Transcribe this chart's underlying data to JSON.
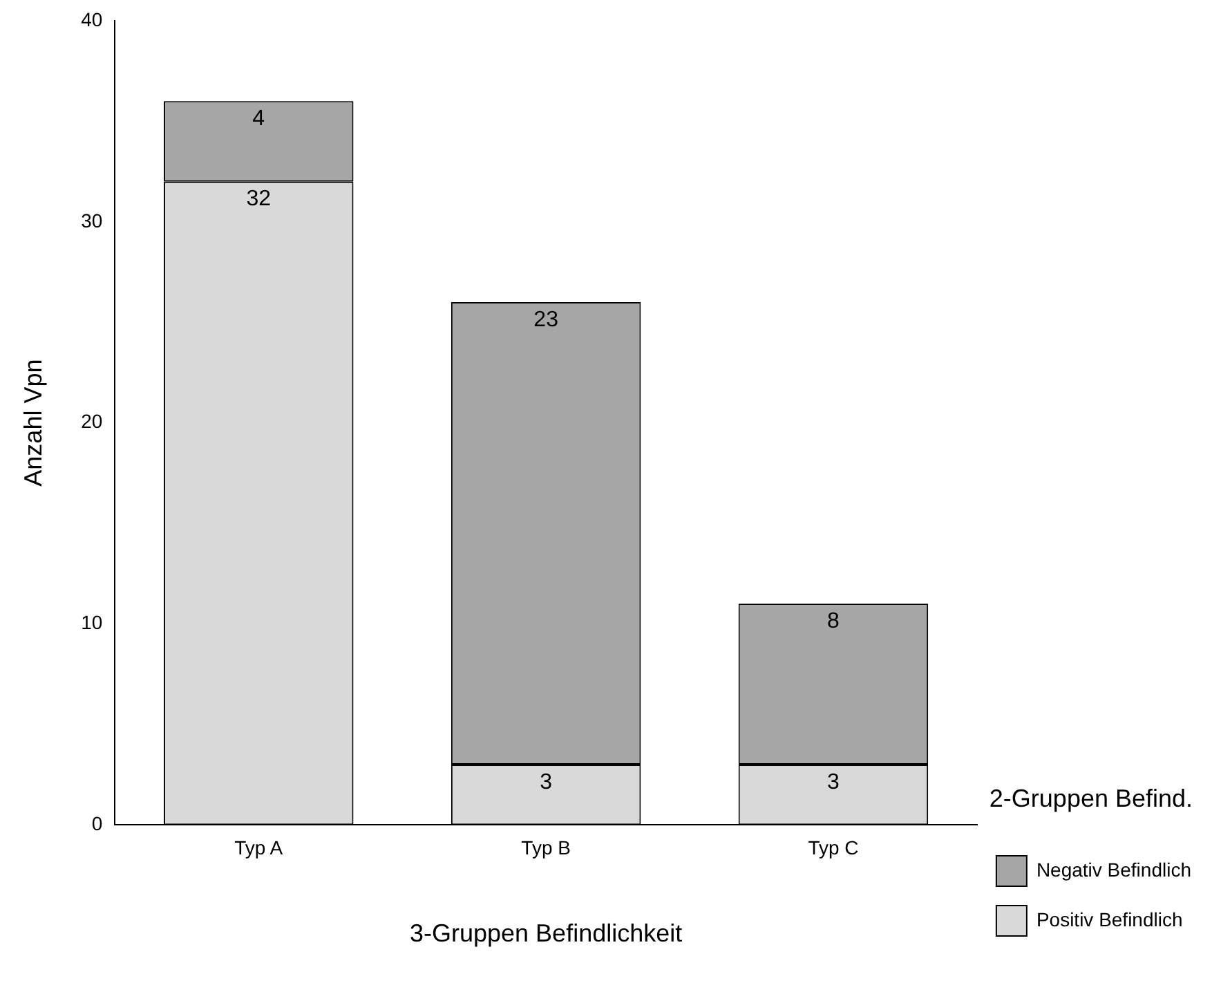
{
  "chart_data": {
    "type": "bar",
    "stacked": true,
    "xlabel": "3-Gruppen Befindlichkeit",
    "ylabel": "Anzahl Vpn",
    "legend_title": "2-Gruppen Befind.",
    "categories": [
      "Typ A",
      "Typ B",
      "Typ C"
    ],
    "series": [
      {
        "name": "Positiv Befindlich",
        "color": "#d9d9d9",
        "values": [
          32,
          3,
          3
        ]
      },
      {
        "name": "Negativ Befindlich",
        "color": "#a6a6a6",
        "values": [
          4,
          23,
          8
        ]
      }
    ],
    "ylim": [
      0,
      40
    ],
    "yticks": [
      0,
      10,
      20,
      30,
      40
    ],
    "grid": false,
    "legend": "bottom right",
    "data_labels": true
  }
}
